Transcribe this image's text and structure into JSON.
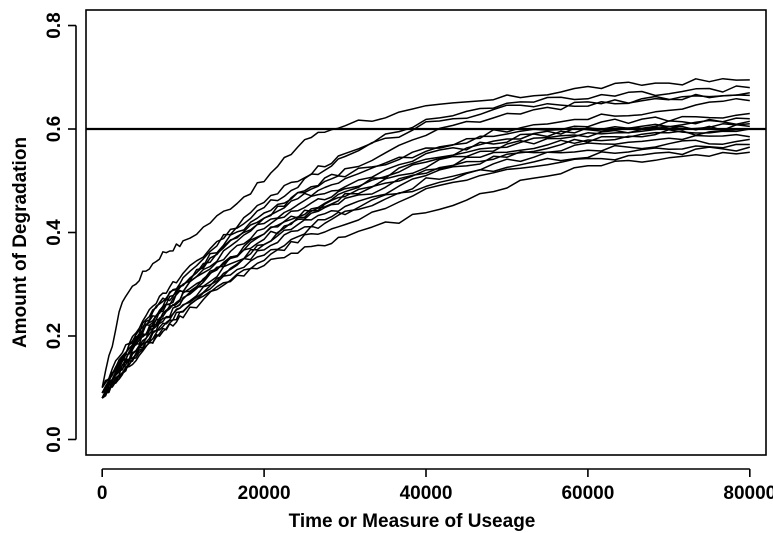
{
  "chart_data": {
    "type": "line",
    "title": "",
    "xlabel": "Time or Measure of Useage",
    "ylabel": "Amount of Degradation",
    "xlim": [
      -2000,
      82000
    ],
    "ylim": [
      -0.03,
      0.83
    ],
    "xticks": [
      0,
      20000,
      40000,
      60000,
      80000
    ],
    "yticks": [
      0.0,
      0.2,
      0.4,
      0.6,
      0.8
    ],
    "xtick_labels": [
      "0",
      "20000",
      "40000",
      "60000",
      "80000"
    ],
    "ytick_labels": [
      "0.0",
      "0.2",
      "0.4",
      "0.6",
      "0.8"
    ],
    "threshold": 0.6,
    "grid": false,
    "x": [
      0,
      2500,
      5000,
      7500,
      10000,
      15000,
      20000,
      25000,
      30000,
      40000,
      50000,
      60000,
      70000,
      80000
    ],
    "series": [
      {
        "values": [
          0.1,
          0.27,
          0.32,
          0.36,
          0.38,
          0.44,
          0.5,
          0.58,
          0.61,
          0.64,
          0.66,
          0.68,
          0.69,
          0.695
        ]
      },
      {
        "values": [
          0.09,
          0.16,
          0.22,
          0.27,
          0.31,
          0.39,
          0.46,
          0.51,
          0.55,
          0.62,
          0.65,
          0.66,
          0.67,
          0.68
        ]
      },
      {
        "values": [
          0.1,
          0.17,
          0.23,
          0.28,
          0.32,
          0.39,
          0.45,
          0.5,
          0.55,
          0.61,
          0.64,
          0.65,
          0.66,
          0.67
        ]
      },
      {
        "values": [
          0.09,
          0.16,
          0.21,
          0.26,
          0.3,
          0.37,
          0.43,
          0.48,
          0.52,
          0.59,
          0.63,
          0.65,
          0.66,
          0.665
        ]
      },
      {
        "values": [
          0.1,
          0.16,
          0.22,
          0.27,
          0.3,
          0.38,
          0.44,
          0.48,
          0.51,
          0.56,
          0.6,
          0.62,
          0.64,
          0.655
        ]
      },
      {
        "values": [
          0.09,
          0.15,
          0.21,
          0.26,
          0.3,
          0.37,
          0.43,
          0.47,
          0.5,
          0.56,
          0.59,
          0.61,
          0.62,
          0.63
        ]
      },
      {
        "values": [
          0.09,
          0.16,
          0.21,
          0.25,
          0.29,
          0.36,
          0.42,
          0.46,
          0.49,
          0.55,
          0.58,
          0.6,
          0.61,
          0.62
        ]
      },
      {
        "values": [
          0.08,
          0.15,
          0.2,
          0.25,
          0.29,
          0.35,
          0.41,
          0.45,
          0.48,
          0.54,
          0.58,
          0.6,
          0.61,
          0.615
        ]
      },
      {
        "values": [
          0.09,
          0.14,
          0.2,
          0.24,
          0.28,
          0.34,
          0.4,
          0.44,
          0.48,
          0.54,
          0.57,
          0.59,
          0.6,
          0.61
        ]
      },
      {
        "values": [
          0.08,
          0.14,
          0.19,
          0.24,
          0.27,
          0.34,
          0.4,
          0.44,
          0.47,
          0.53,
          0.57,
          0.59,
          0.6,
          0.605
        ]
      },
      {
        "values": [
          0.09,
          0.15,
          0.2,
          0.24,
          0.28,
          0.34,
          0.39,
          0.43,
          0.47,
          0.52,
          0.56,
          0.58,
          0.595,
          0.6
        ]
      },
      {
        "values": [
          0.08,
          0.14,
          0.19,
          0.23,
          0.27,
          0.33,
          0.38,
          0.43,
          0.46,
          0.52,
          0.55,
          0.58,
          0.59,
          0.6
        ]
      },
      {
        "values": [
          0.08,
          0.13,
          0.18,
          0.23,
          0.26,
          0.32,
          0.38,
          0.42,
          0.45,
          0.51,
          0.55,
          0.57,
          0.58,
          0.585
        ]
      },
      {
        "values": [
          0.09,
          0.14,
          0.18,
          0.22,
          0.26,
          0.32,
          0.37,
          0.41,
          0.44,
          0.5,
          0.54,
          0.56,
          0.57,
          0.58
        ]
      },
      {
        "values": [
          0.08,
          0.13,
          0.18,
          0.22,
          0.25,
          0.31,
          0.36,
          0.4,
          0.44,
          0.49,
          0.53,
          0.55,
          0.56,
          0.57
        ]
      },
      {
        "values": [
          0.08,
          0.13,
          0.17,
          0.21,
          0.25,
          0.3,
          0.35,
          0.39,
          0.42,
          0.48,
          0.52,
          0.54,
          0.555,
          0.565
        ]
      },
      {
        "values": [
          0.08,
          0.13,
          0.17,
          0.21,
          0.24,
          0.3,
          0.34,
          0.37,
          0.39,
          0.44,
          0.49,
          0.53,
          0.545,
          0.555
        ]
      }
    ]
  }
}
